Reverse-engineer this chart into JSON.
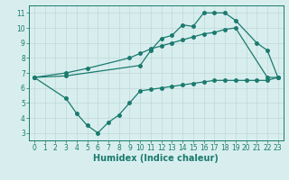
{
  "line1_x": [
    0,
    3,
    10,
    11,
    12,
    13,
    14,
    15,
    16,
    17,
    18,
    19,
    21,
    22,
    23
  ],
  "line1_y": [
    6.7,
    6.8,
    7.5,
    8.5,
    9.3,
    9.5,
    10.2,
    10.1,
    11.0,
    11.0,
    11.0,
    10.5,
    9.0,
    8.5,
    6.7
  ],
  "line2_x": [
    0,
    3,
    5,
    9,
    10,
    11,
    12,
    13,
    14,
    15,
    16,
    17,
    18,
    19,
    22,
    23
  ],
  "line2_y": [
    6.7,
    7.0,
    7.3,
    8.0,
    8.3,
    8.6,
    8.8,
    9.0,
    9.2,
    9.4,
    9.6,
    9.7,
    9.9,
    10.0,
    6.7,
    6.7
  ],
  "line3_x": [
    0,
    3,
    4,
    5,
    6,
    7,
    8,
    9,
    10,
    11,
    12,
    13,
    14,
    15,
    16,
    17,
    18,
    19,
    20,
    21,
    22,
    23
  ],
  "line3_y": [
    6.7,
    5.3,
    4.3,
    3.5,
    3.0,
    3.7,
    4.2,
    5.0,
    5.8,
    5.9,
    6.0,
    6.1,
    6.2,
    6.3,
    6.4,
    6.5,
    6.5,
    6.5,
    6.5,
    6.5,
    6.5,
    6.7
  ],
  "line_color": "#1a7a6e",
  "bg_color": "#d8eeee",
  "grid_color": "#c0d8d8",
  "xlabel": "Humidex (Indice chaleur)",
  "xlim": [
    -0.5,
    23.5
  ],
  "ylim": [
    2.5,
    11.5
  ],
  "xticks": [
    0,
    1,
    2,
    3,
    4,
    5,
    6,
    7,
    8,
    9,
    10,
    11,
    12,
    13,
    14,
    15,
    16,
    17,
    18,
    19,
    20,
    21,
    22,
    23
  ],
  "yticks": [
    3,
    4,
    5,
    6,
    7,
    8,
    9,
    10,
    11
  ],
  "tick_fontsize": 5.5,
  "xlabel_fontsize": 7
}
